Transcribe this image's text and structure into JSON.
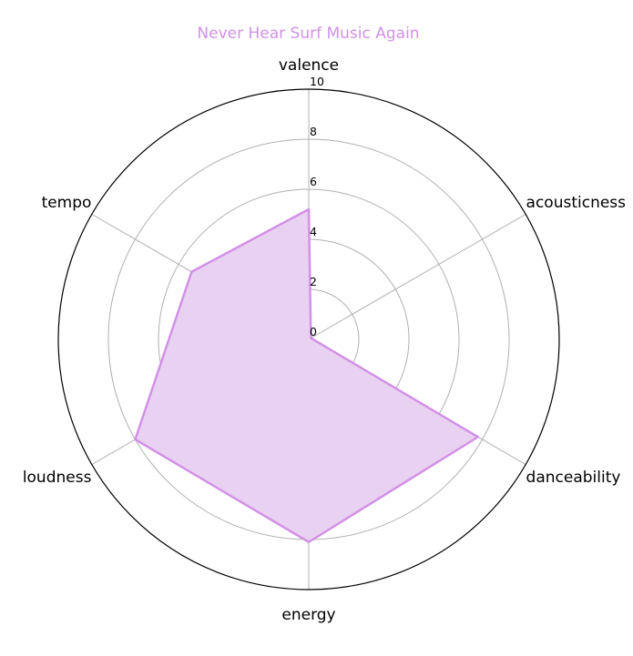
{
  "chart_data": {
    "type": "radar",
    "title": "Never Hear Surf Music Again",
    "axes": [
      "valence",
      "acousticness",
      "danceability",
      "energy",
      "loudness",
      "tempo"
    ],
    "series": [
      {
        "values": [
          5.2,
          0.1,
          7.8,
          8.1,
          8.0,
          5.4
        ]
      }
    ],
    "rlim": [
      0,
      10
    ],
    "rticks": [
      0,
      2,
      4,
      6,
      8,
      10
    ],
    "grid": true,
    "colors": {
      "series": "#d291e6",
      "fill": "#e9d2f1",
      "grid": "#b0b0b0",
      "frame": "#000000"
    }
  }
}
